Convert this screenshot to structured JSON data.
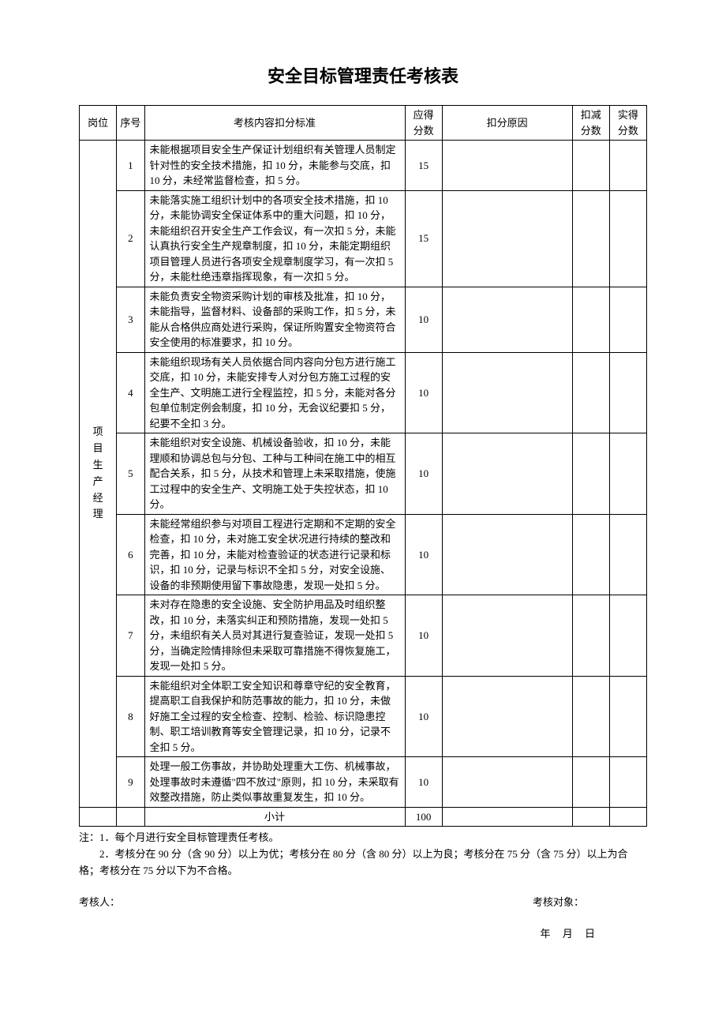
{
  "title": "安全目标管理责任考核表",
  "table": {
    "headers": {
      "post": "岗位",
      "seq": "序号",
      "content": "考核内容扣分标准",
      "score": "应得分数",
      "reason": "扣分原因",
      "deduct": "扣减分数",
      "actual": "实得分数"
    },
    "post_label": "项目生产经理",
    "rows": [
      {
        "seq": "1",
        "content": "未能根据项目安全生产保证计划组织有关管理人员制定针对性的安全技术措施，扣 10 分，未能参与交底，扣 10 分，未经常监督检查，扣 5 分。",
        "score": "15",
        "reason": "",
        "deduct": "",
        "actual": ""
      },
      {
        "seq": "2",
        "content": "未能落实施工组织计划中的各项安全技术措施，扣 10 分，未能协调安全保证体系中的重大问题，扣 10 分，未能组织召开安全生产工作会议，有一次扣 5 分，未能认真执行安全生产规章制度，扣 10 分，未能定期组织项目管理人员进行各项安全规章制度学习，有一次扣 5 分，未能杜绝违章指挥现象，有一次扣 5 分。",
        "score": "15",
        "reason": "",
        "deduct": "",
        "actual": ""
      },
      {
        "seq": "3",
        "content": "未能负责安全物资采购计划的审核及批准，扣 10 分，未能指导，监督材料、设备部的采购工作，扣 5 分，未能从合格供应商处进行采购，保证所购置安全物资符合安全使用的标准要求，扣 10 分。",
        "score": "10",
        "reason": "",
        "deduct": "",
        "actual": ""
      },
      {
        "seq": "4",
        "content": "未能组织现场有关人员依据合同内容向分包方进行施工交底，扣 10 分，未能安排专人对分包方施工过程的安全生产、文明施工进行全程监控，扣 5 分，未能对各分包单位制定例会制度，扣 10 分，无会议纪要扣 5 分，纪要不全扣 3 分。",
        "score": "10",
        "reason": "",
        "deduct": "",
        "actual": ""
      },
      {
        "seq": "5",
        "content": "未能组织对安全设施、机械设备验收，扣 10 分，未能理顺和协调总包与分包、工种与工种间在施工中的相互配合关系，扣 5 分，从技术和管理上未采取措施，使施工过程中的安全生产、文明施工处于失控状态，扣 10 分。",
        "score": "10",
        "reason": "",
        "deduct": "",
        "actual": ""
      },
      {
        "seq": "6",
        "content": "未能经常组织参与对项目工程进行定期和不定期的安全检查，扣 10 分，未对施工安全状况进行持续的整改和完善，扣 10 分，未能对检查验证的状态进行记录和标识，扣 10 分，记录与标识不全扣 5 分，对安全设施、设备的非预期使用留下事故隐患，发现一处扣 5 分。",
        "score": "10",
        "reason": "",
        "deduct": "",
        "actual": ""
      },
      {
        "seq": "7",
        "content": "未对存在隐患的安全设施、安全防护用品及时组织整改，扣 10 分，未落实纠正和预防措施，发现一处扣 5 分，未组织有关人员对其进行复查验证，发现一处扣 5 分，当确定险情排除但未采取可靠措施不得恢复施工，发现一处扣 5 分。",
        "score": "10",
        "reason": "",
        "deduct": "",
        "actual": ""
      },
      {
        "seq": "8",
        "content": "未能组织对全体职工安全知识和尊章守纪的安全教育，提高职工自我保护和防范事故的能力，扣 10 分，未做好施工全过程的安全检查、控制、检验、标识隐患控制、职工培训教育等安全管理记录，扣 10 分，记录不全扣 5 分。",
        "score": "10",
        "reason": "",
        "deduct": "",
        "actual": ""
      },
      {
        "seq": "9",
        "content": "处理一般工伤事故，并协助处理重大工伤、机械事故，处理事故时未遵循\"四不放过\"原则，扣 10 分，未采取有效整改措施，防止类似事故重复发生，扣 10 分。",
        "score": "10",
        "reason": "",
        "deduct": "",
        "actual": ""
      }
    ],
    "subtotal_label": "小计",
    "subtotal_score": "100"
  },
  "notes": {
    "line1": "注：1．每个月进行安全目标管理责任考核。",
    "line2": "　　2．考核分在 90 分（含 90 分）以上为优；考核分在 80 分（含 80 分）以上为良；考核分在 75 分（含 75 分）以上为合格；考核分在 75 分以下为不合格。"
  },
  "signature": {
    "assessor": "考核人：",
    "target": "考核对象："
  },
  "date_label": "年 月 日"
}
